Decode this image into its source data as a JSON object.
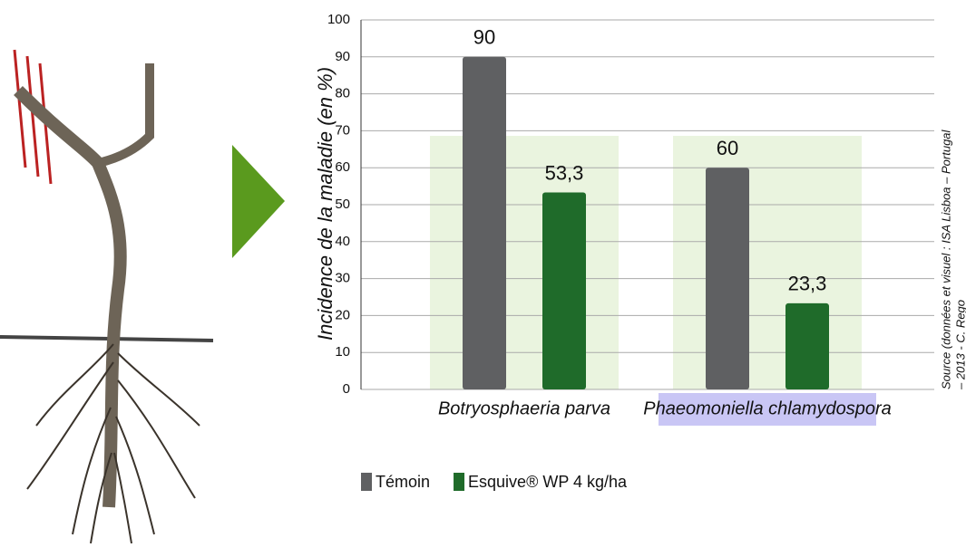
{
  "chart_data": {
    "type": "bar",
    "y_label": "Incidence de la maladie (en %)",
    "categories": [
      "Botryosphaeria parva",
      "Phaeomoniella chlamydospora"
    ],
    "series": [
      {
        "name": "Témoin",
        "color": "#5f6062",
        "values": [
          90,
          60
        ]
      },
      {
        "name": "Esquive® WP 4 kg/ha",
        "color": "#1f6b2a",
        "values": [
          53.3,
          23.3
        ],
        "value_labels": [
          "53,3",
          "23,3"
        ]
      }
    ],
    "ylim": [
      0,
      100
    ],
    "yticks": [
      0,
      10,
      20,
      30,
      40,
      50,
      60,
      70,
      80,
      90,
      100
    ],
    "grid": true,
    "source": [
      "Source (données et visuel : ISA Lisboa – Portugal",
      "– 2013 - C. Rego"
    ]
  }
}
